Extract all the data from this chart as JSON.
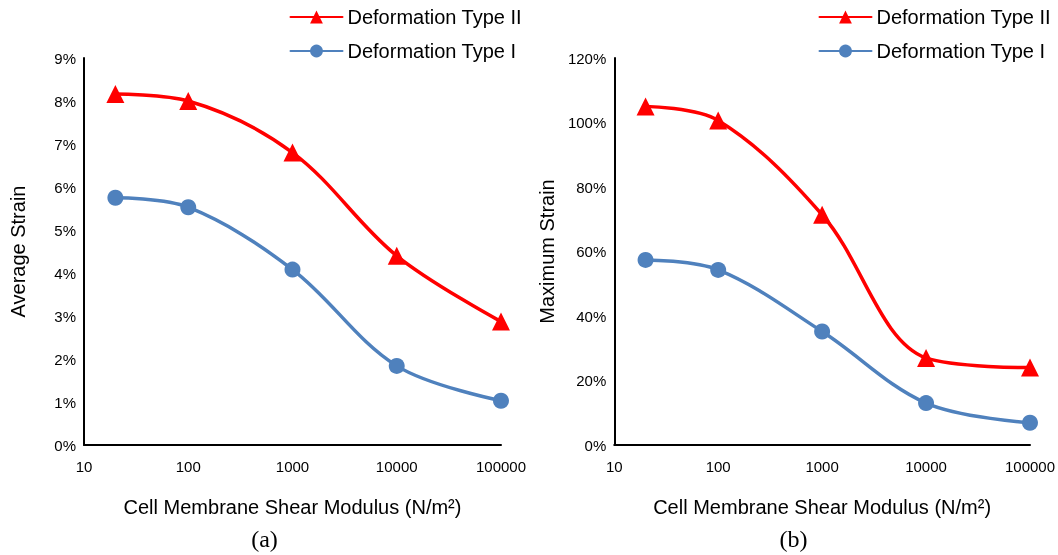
{
  "chart_data": [
    {
      "type": "line",
      "xlabel": "Cell Membrane Shear Modulus (N/m²)",
      "ylabel": "Average Strain",
      "annotations": [
        "(a)"
      ],
      "log": "x",
      "x": [
        20,
        100,
        1000,
        10000,
        100000
      ],
      "xlim": [
        10,
        100000
      ],
      "xticks": [
        10,
        100,
        1000,
        10000,
        100000
      ],
      "ylim": [
        0,
        9
      ],
      "yticks": [
        {
          "value": 0,
          "label": "0%"
        },
        {
          "value": 1,
          "label": "1%"
        },
        {
          "value": 2,
          "label": "2%"
        },
        {
          "value": 3,
          "label": "3%"
        },
        {
          "value": 4,
          "label": "4%"
        },
        {
          "value": 5,
          "label": "5%"
        },
        {
          "value": 6,
          "label": "6%"
        },
        {
          "value": 7,
          "label": "7%"
        },
        {
          "value": 8,
          "label": "8%"
        },
        {
          "value": 9,
          "label": "9%"
        }
      ],
      "grid": false,
      "legend": "top right",
      "line_style": "solid",
      "series": [
        {
          "name": "Deformation Type II",
          "color": "#ff0000",
          "marker": "triangle",
          "values": [
            8.16,
            8.0,
            6.8,
            4.4,
            2.87
          ]
        },
        {
          "name": "Deformation Type I",
          "color": "#4f81bd",
          "marker": "circle",
          "values": [
            5.75,
            5.53,
            4.08,
            1.84,
            1.03
          ]
        }
      ]
    },
    {
      "type": "line",
      "xlabel": "Cell Membrane Shear Modulus (N/m²)",
      "ylabel": "Maximum Strain",
      "annotations": [
        "(b)"
      ],
      "log": "x",
      "x": [
        20,
        100,
        1000,
        10000,
        100000
      ],
      "xlim": [
        10,
        100000
      ],
      "xticks": [
        10,
        100,
        1000,
        10000,
        100000
      ],
      "ylim": [
        0,
        120
      ],
      "yticks": [
        {
          "value": 0,
          "label": "0%"
        },
        {
          "value": 20,
          "label": "20%"
        },
        {
          "value": 40,
          "label": "40%"
        },
        {
          "value": 60,
          "label": "60%"
        },
        {
          "value": 80,
          "label": "80%"
        },
        {
          "value": 100,
          "label": "100%"
        },
        {
          "value": 120,
          "label": "120%"
        }
      ],
      "grid": false,
      "legend": "top right",
      "line_style": "solid",
      "series": [
        {
          "name": "Deformation Type II",
          "color": "#ff0000",
          "marker": "triangle",
          "values": [
            105,
            100.6,
            71.4,
            27,
            24
          ]
        },
        {
          "name": "Deformation Type I",
          "color": "#4f81bd",
          "marker": "circle",
          "values": [
            57.4,
            54.3,
            35.2,
            13,
            6.9
          ]
        }
      ]
    }
  ]
}
